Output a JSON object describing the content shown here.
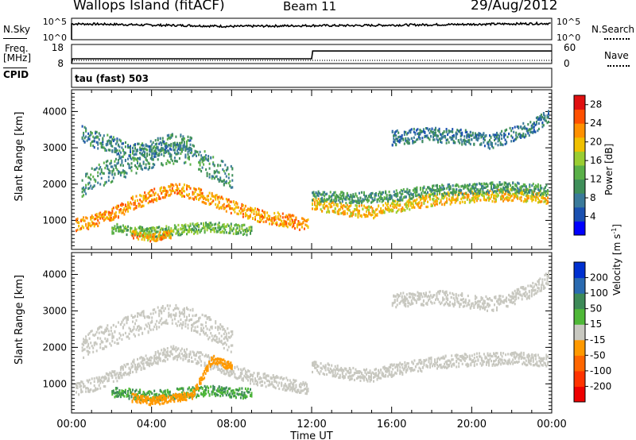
{
  "header": {
    "station": "Wallops Island (fitACF)",
    "beam": "Beam 11",
    "date": "29/Aug/2012"
  },
  "left_labels": {
    "nsky": "N.Sky",
    "freq_line1": "Freq.",
    "freq_line2": "[MHz]",
    "cpid": "CPID"
  },
  "right_labels": {
    "nsearch": "N.Search",
    "nave": "Nave"
  },
  "cpid_text": "tau (fast) 503",
  "colors": {
    "power": [
      "#0000ff",
      "#1a50b0",
      "#3a7a9a",
      "#3f8f5a",
      "#5ab048",
      "#9acd32",
      "#f0c000",
      "#ff9000",
      "#ff5000",
      "#e01010"
    ],
    "velocity": [
      "#0030d0",
      "#2a6ab0",
      "#3d8a58",
      "#4fb838",
      "#c8c8c0",
      "#c8c8c0",
      "#ff9900",
      "#ff6600",
      "#ff3300",
      "#ee0000"
    ]
  },
  "chart_data": [
    {
      "type": "line",
      "title": "N.Sky / N.Search",
      "left_ticks": [
        "10^5",
        "10^0"
      ],
      "right_ticks": [
        "10^5",
        "10^0"
      ],
      "ylim_log10": [
        0,
        5
      ],
      "series": [
        {
          "name": "N.Sky",
          "style": "solid",
          "x": [
            0,
            2,
            4,
            6,
            8,
            10,
            12,
            14,
            16,
            18,
            20,
            22,
            24
          ],
          "y_log10": [
            3.6,
            3.5,
            3.3,
            3.2,
            3.0,
            3.1,
            3.2,
            3.2,
            3.3,
            3.4,
            3.5,
            3.6,
            3.7
          ]
        },
        {
          "name": "N.Search",
          "style": "dotted",
          "x": [],
          "y_log10": []
        }
      ]
    },
    {
      "type": "line",
      "title": "Freq / Nave",
      "left_ticks": [
        "18",
        "8"
      ],
      "right_ticks": [
        "60",
        "0"
      ],
      "ylim_left": [
        8,
        18
      ],
      "ylim_right": [
        0,
        60
      ],
      "series": [
        {
          "name": "Freq.",
          "style": "solid",
          "axis": "left",
          "x": [
            0,
            0.05,
            12,
            12.05,
            24
          ],
          "y": [
            8,
            10.5,
            10.5,
            14.6,
            14.6
          ]
        },
        {
          "name": "Nave",
          "style": "dotted",
          "axis": "right",
          "x": [
            0,
            24
          ],
          "y": [
            10,
            10
          ]
        }
      ]
    },
    {
      "type": "heatmap",
      "title": "Power",
      "ylabel": "Slant Range [km]",
      "yticks": [
        1000,
        2000,
        3000,
        4000
      ],
      "ylim": [
        200,
        4600
      ],
      "xlim": [
        0,
        24
      ],
      "colorbar": {
        "label": "Power [dB]",
        "ticks": [
          "4",
          "8",
          "12",
          "16",
          "20",
          "24",
          "28"
        ],
        "range": [
          0,
          30
        ]
      },
      "layers": [
        {
          "x": [
            0.2,
            1,
            2,
            3,
            4,
            5,
            6,
            7,
            8,
            9,
            10,
            11,
            11.8
          ],
          "y": [
            900,
            1000,
            1200,
            1500,
            1700,
            1900,
            1800,
            1600,
            1400,
            1200,
            1100,
            1000,
            900
          ],
          "spread": 180,
          "value": 22
        },
        {
          "x": [
            12,
            13,
            14,
            15,
            16,
            17,
            18,
            19,
            20,
            21,
            22,
            23,
            23.8
          ],
          "y": [
            1500,
            1400,
            1300,
            1250,
            1400,
            1500,
            1600,
            1650,
            1700,
            1700,
            1750,
            1700,
            1650
          ],
          "spread": 170,
          "value": 20
        },
        {
          "x": [
            12,
            14,
            16,
            18,
            20,
            22,
            23.8
          ],
          "y": [
            1700,
            1650,
            1700,
            1850,
            1900,
            1950,
            1850
          ],
          "spread": 150,
          "value": 11
        },
        {
          "x": [
            2,
            3,
            4,
            5,
            6,
            7,
            8,
            9
          ],
          "y": [
            800,
            750,
            700,
            750,
            800,
            850,
            800,
            750
          ],
          "spread": 140,
          "value": 14
        },
        {
          "x": [
            3,
            3.5,
            4,
            4.5,
            5
          ],
          "y": [
            650,
            600,
            550,
            600,
            650
          ],
          "spread": 110,
          "value": 21
        },
        {
          "x": [
            0.5,
            1,
            2,
            3,
            4,
            5,
            6,
            7,
            8
          ],
          "y": [
            2000,
            2200,
            2400,
            2600,
            2800,
            2900,
            2800,
            2500,
            2200
          ],
          "spread": 320,
          "value": 10
        },
        {
          "x": [
            16,
            18,
            20,
            21,
            22,
            23,
            23.8
          ],
          "y": [
            3300,
            3400,
            3300,
            3200,
            3400,
            3600,
            3900
          ],
          "spread": 200,
          "value": 8
        },
        {
          "x": [
            0.5,
            1,
            2,
            3,
            4,
            5,
            6
          ],
          "y": [
            3400,
            3300,
            3100,
            2900,
            3000,
            3200,
            3100
          ],
          "spread": 240,
          "value": 9
        }
      ]
    },
    {
      "type": "heatmap",
      "title": "Velocity",
      "ylabel": "Slant Range [km]",
      "yticks": [
        1000,
        2000,
        3000,
        4000
      ],
      "ylim": [
        200,
        4600
      ],
      "xlim": [
        0,
        24
      ],
      "xticks": [
        "00:00",
        "04:00",
        "08:00",
        "12:00",
        "16:00",
        "20:00",
        "00:00"
      ],
      "xlabel": "Time UT",
      "colorbar": {
        "label": "Velocity [m s-1]",
        "ticks": [
          "200",
          "100",
          "50",
          "15",
          "-15",
          "-50",
          "-100",
          "-200"
        ]
      },
      "layers": [
        {
          "x": [
            0.2,
            1,
            2,
            3,
            4,
            5,
            6,
            7,
            8,
            9,
            10,
            11,
            11.8
          ],
          "y": [
            900,
            1000,
            1200,
            1500,
            1700,
            1900,
            1800,
            1600,
            1400,
            1200,
            1100,
            1000,
            900
          ],
          "spread": 180,
          "value": 0
        },
        {
          "x": [
            12,
            13,
            14,
            15,
            16,
            17,
            18,
            19,
            20,
            21,
            22,
            23,
            23.8
          ],
          "y": [
            1500,
            1400,
            1300,
            1250,
            1400,
            1500,
            1600,
            1650,
            1700,
            1700,
            1750,
            1700,
            1650
          ],
          "spread": 170,
          "value": 0
        },
        {
          "x": [
            2,
            3,
            4,
            5,
            6,
            7,
            8,
            9
          ],
          "y": [
            800,
            750,
            700,
            750,
            800,
            850,
            800,
            750
          ],
          "spread": 140,
          "value": 30
        },
        {
          "x": [
            3,
            3.5,
            4,
            4.5,
            5,
            6,
            7,
            8
          ],
          "y": [
            650,
            600,
            550,
            600,
            650,
            700,
            1700,
            1500
          ],
          "spread": 110,
          "value": -40
        },
        {
          "x": [
            0.5,
            1,
            2,
            3,
            4,
            5,
            6,
            7,
            8
          ],
          "y": [
            2000,
            2200,
            2400,
            2600,
            2800,
            2900,
            2800,
            2500,
            2200
          ],
          "spread": 320,
          "value": 0
        },
        {
          "x": [
            16,
            18,
            20,
            21,
            22,
            23,
            23.8
          ],
          "y": [
            3300,
            3400,
            3300,
            3200,
            3400,
            3600,
            3900
          ],
          "spread": 200,
          "value": 0
        }
      ]
    }
  ]
}
